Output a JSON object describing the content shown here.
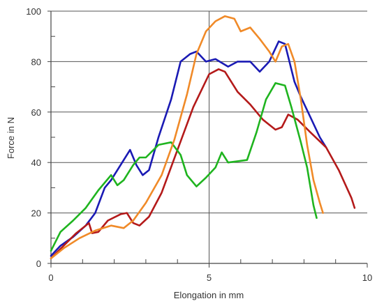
{
  "chart_data": {
    "type": "line",
    "xlabel": "Elongation in mm",
    "ylabel": "Force in N",
    "xlim": [
      0,
      10
    ],
    "ylim": [
      0,
      100
    ],
    "x_ticks": [
      0,
      5,
      10
    ],
    "y_ticks": [
      0,
      20,
      40,
      60,
      80,
      100
    ],
    "x_minor_ticks": [
      1,
      2,
      3,
      4,
      6,
      7,
      8,
      9
    ],
    "y_minor_ticks": [
      10,
      30,
      50,
      70,
      90
    ],
    "grid": "horizontal at y ticks, vertical at x = 5",
    "legend": "none",
    "series": [
      {
        "color": "#1a1ab4",
        "points": [
          [
            0,
            3
          ],
          [
            0.3,
            7
          ],
          [
            0.7,
            10.5
          ],
          [
            1.1,
            15
          ],
          [
            1.4,
            20
          ],
          [
            1.7,
            30
          ],
          [
            1.9,
            33
          ],
          [
            2.2,
            39
          ],
          [
            2.5,
            45
          ],
          [
            2.7,
            39
          ],
          [
            2.9,
            35
          ],
          [
            3.1,
            37
          ],
          [
            3.4,
            50
          ],
          [
            3.8,
            65
          ],
          [
            4.1,
            80
          ],
          [
            4.4,
            83
          ],
          [
            4.6,
            84
          ],
          [
            4.9,
            80
          ],
          [
            5.2,
            81
          ],
          [
            5.6,
            78
          ],
          [
            5.9,
            80
          ],
          [
            6.3,
            80
          ],
          [
            6.6,
            76
          ],
          [
            6.9,
            80
          ],
          [
            7.2,
            88
          ],
          [
            7.4,
            87
          ],
          [
            7.7,
            72
          ],
          [
            7.9,
            66
          ],
          [
            8.2,
            58
          ],
          [
            8.5,
            50
          ],
          [
            8.7,
            46
          ]
        ]
      },
      {
        "color": "#b41a1a",
        "points": [
          [
            0,
            2
          ],
          [
            0.4,
            7
          ],
          [
            0.8,
            12
          ],
          [
            1.2,
            16
          ],
          [
            1.3,
            12
          ],
          [
            1.5,
            12.5
          ],
          [
            1.8,
            17
          ],
          [
            2.2,
            19.5
          ],
          [
            2.4,
            20
          ],
          [
            2.6,
            16
          ],
          [
            2.8,
            15
          ],
          [
            3.1,
            18.5
          ],
          [
            3.5,
            28
          ],
          [
            4,
            45
          ],
          [
            4.5,
            62
          ],
          [
            5,
            75
          ],
          [
            5.3,
            77
          ],
          [
            5.5,
            76
          ],
          [
            5.9,
            68
          ],
          [
            6.3,
            63
          ],
          [
            6.7,
            57
          ],
          [
            7.1,
            53
          ],
          [
            7.3,
            54
          ],
          [
            7.5,
            59
          ],
          [
            7.8,
            57
          ],
          [
            8.2,
            52
          ],
          [
            8.7,
            46
          ],
          [
            9.1,
            37
          ],
          [
            9.5,
            26
          ],
          [
            9.6,
            22
          ]
        ]
      },
      {
        "color": "#1fb41f",
        "points": [
          [
            0,
            5
          ],
          [
            0.3,
            12.5
          ],
          [
            0.7,
            17
          ],
          [
            1.1,
            22
          ],
          [
            1.5,
            29
          ],
          [
            1.9,
            35
          ],
          [
            2.1,
            31
          ],
          [
            2.3,
            33
          ],
          [
            2.6,
            39
          ],
          [
            2.8,
            42
          ],
          [
            3,
            42
          ],
          [
            3.4,
            47
          ],
          [
            3.8,
            48
          ],
          [
            4.1,
            43
          ],
          [
            4.3,
            35
          ],
          [
            4.6,
            30.5
          ],
          [
            4.9,
            34
          ],
          [
            5.2,
            38
          ],
          [
            5.4,
            44
          ],
          [
            5.6,
            40
          ],
          [
            5.9,
            40.5
          ],
          [
            6.2,
            41
          ],
          [
            6.5,
            52
          ],
          [
            6.8,
            65
          ],
          [
            7.1,
            71.5
          ],
          [
            7.4,
            70.5
          ],
          [
            7.6,
            62
          ],
          [
            7.9,
            48
          ],
          [
            8.1,
            38
          ],
          [
            8.3,
            23
          ],
          [
            8.4,
            18
          ]
        ]
      },
      {
        "color": "#f08a28",
        "points": [
          [
            0,
            2
          ],
          [
            0.4,
            6
          ],
          [
            0.9,
            10
          ],
          [
            1.4,
            13
          ],
          [
            1.9,
            15
          ],
          [
            2.3,
            14
          ],
          [
            2.6,
            17
          ],
          [
            3,
            24
          ],
          [
            3.5,
            35
          ],
          [
            3.9,
            49
          ],
          [
            4.3,
            67
          ],
          [
            4.6,
            83
          ],
          [
            4.9,
            92
          ],
          [
            5.2,
            96
          ],
          [
            5.5,
            98
          ],
          [
            5.8,
            97
          ],
          [
            6,
            92
          ],
          [
            6.3,
            93.5
          ],
          [
            6.6,
            89
          ],
          [
            6.9,
            84
          ],
          [
            7.1,
            80
          ],
          [
            7.3,
            86
          ],
          [
            7.5,
            87
          ],
          [
            7.7,
            80
          ],
          [
            7.9,
            65
          ],
          [
            8.1,
            47
          ],
          [
            8.3,
            33
          ],
          [
            8.5,
            24
          ],
          [
            8.6,
            20
          ]
        ]
      }
    ]
  }
}
